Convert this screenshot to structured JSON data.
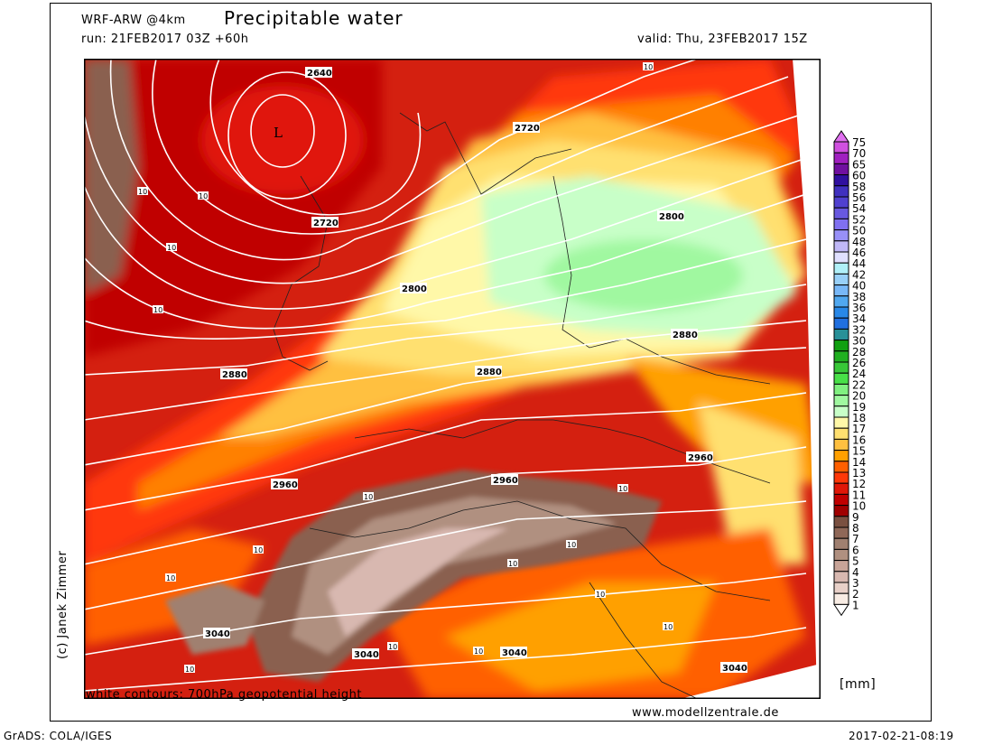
{
  "header": {
    "model": "WRF-ARW @4km",
    "title": "Precipitable water",
    "run": "run: 21FEB2017 03Z +60h",
    "valid": "valid: Thu, 23FEB2017 15Z"
  },
  "map": {
    "low_marker": "L",
    "contour_labels": [
      "2640",
      "2720",
      "2720",
      "2800",
      "2800",
      "2880",
      "2880",
      "2880",
      "2960",
      "2960",
      "2960",
      "3040",
      "3040",
      "3040",
      "3040"
    ],
    "pw_labels": [
      "10",
      "10",
      "10",
      "10",
      "10",
      "10",
      "10",
      "10",
      "10",
      "10",
      "10",
      "10",
      "10",
      "10",
      "10",
      "10"
    ],
    "contour_color": "#ffffff"
  },
  "legend": {
    "unit": "[mm]",
    "labels": [
      "75",
      "70",
      "65",
      "60",
      "58",
      "56",
      "54",
      "52",
      "50",
      "48",
      "46",
      "44",
      "42",
      "40",
      "38",
      "36",
      "34",
      "32",
      "30",
      "28",
      "26",
      "24",
      "22",
      "20",
      "19",
      "18",
      "17",
      "16",
      "15",
      "14",
      "13",
      "12",
      "11",
      "10",
      "9",
      "8",
      "7",
      "6",
      "5",
      "4",
      "3",
      "2",
      "1"
    ],
    "top_arrow_color": "#e070f0",
    "bottom_arrow_color": "#ffffff",
    "colors": [
      "#d050e0",
      "#a020c0",
      "#7010a0",
      "#3010a0",
      "#4030c0",
      "#5040d0",
      "#6858e0",
      "#8070f0",
      "#9890f8",
      "#c0b8f8",
      "#e0e0ff",
      "#b0f0f8",
      "#98d0f8",
      "#78b8f8",
      "#50a8f0",
      "#2888e8",
      "#2070e0",
      "#289098",
      "#10a010",
      "#20b020",
      "#38c838",
      "#48e048",
      "#80f080",
      "#a0f8a0",
      "#c8ffc8",
      "#fff8a8",
      "#ffe070",
      "#ffc040",
      "#ffa000",
      "#ff6000",
      "#ff3808",
      "#e01808",
      "#c00000",
      "#a00000",
      "#7a5040",
      "#906858",
      "#a08070",
      "#b09080",
      "#c8a498",
      "#d8b8b0",
      "#e8d0c8",
      "#f8ece4"
    ]
  },
  "footer": {
    "contours_note": "white contours: 700hPa geopotential height",
    "website": "www.modellzentrale.de",
    "copyright": "(c) Janek Zimmer",
    "grads": "GrADS: COLA/IGES",
    "timestamp": "2017-02-21-08:19"
  }
}
